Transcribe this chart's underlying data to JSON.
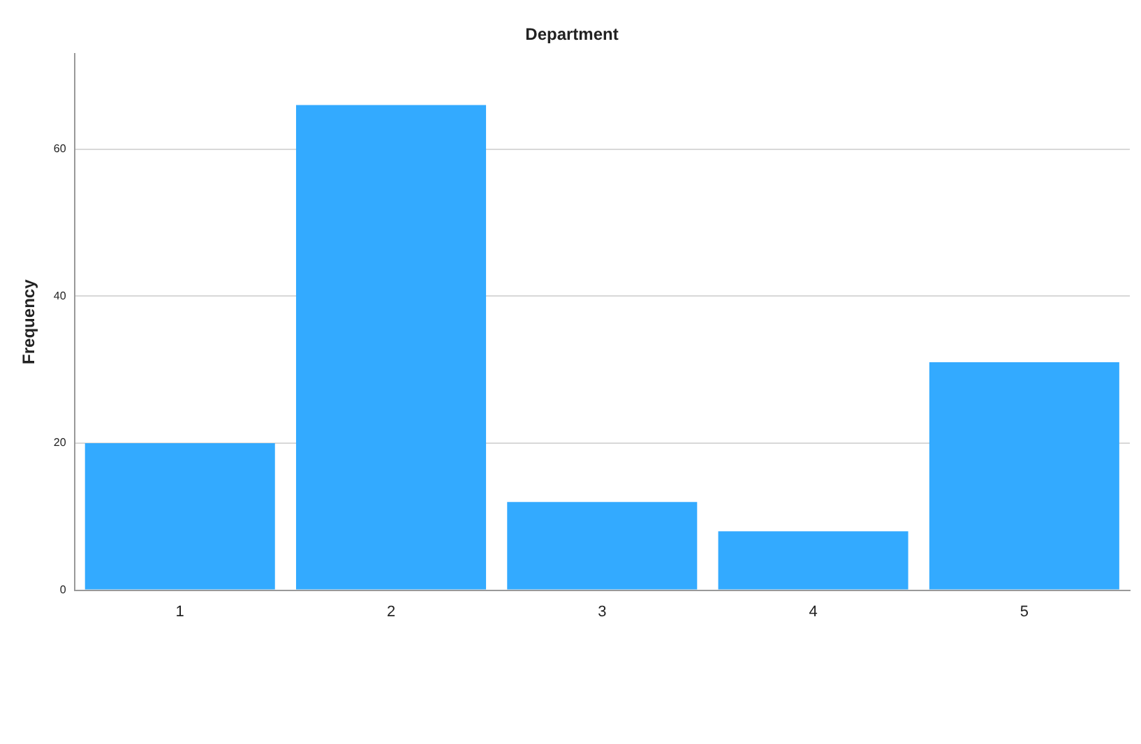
{
  "chart_data": {
    "type": "bar",
    "title": "Department",
    "ylabel": "Frequency",
    "categories": [
      "1",
      "2",
      "3",
      "4",
      "5"
    ],
    "values": [
      20,
      66,
      12,
      8,
      31
    ],
    "color": "#33aaff",
    "ylim": [
      0,
      73
    ],
    "yticks": [
      0,
      20,
      40,
      60
    ],
    "grid": "y"
  }
}
